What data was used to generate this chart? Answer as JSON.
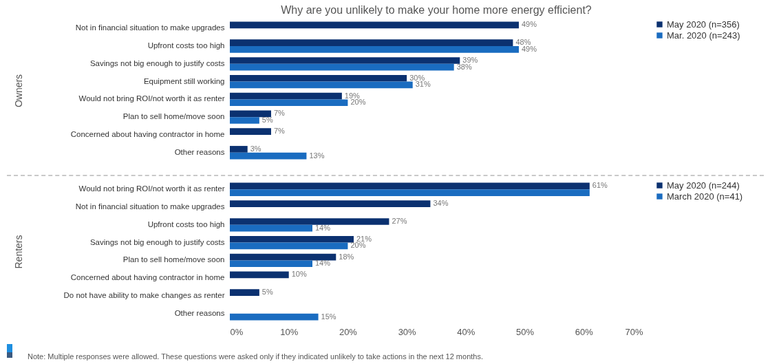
{
  "chart_data": [
    {
      "type": "bar",
      "orientation": "horizontal",
      "title": "Why are you unlikely to make your home more energy efficient?",
      "ylabel": "Owners",
      "categories": [
        "Not in financial situation to make upgrades",
        "Upfront costs too high",
        "Savings not big enough to justify costs",
        "Equipment still working",
        "Would not bring ROI/not worth it as renter",
        "Plan to sell home/move soon",
        "Concerned about having contractor in home",
        "Other reasons"
      ],
      "series": [
        {
          "name": "May 2020 (n=356)",
          "color": "#0b3170",
          "values": [
            49,
            48,
            39,
            30,
            19,
            7,
            7,
            3
          ],
          "value_labels": [
            "49%",
            "48%",
            "39%",
            "30%",
            "19%",
            "7%",
            "7%",
            "3%"
          ]
        },
        {
          "name": "Mar. 2020 (n=243)",
          "color": "#1a6cc0",
          "values": [
            null,
            49,
            38,
            31,
            20,
            5,
            null,
            13
          ],
          "value_labels": [
            null,
            "49%",
            "38%",
            "31%",
            "20%",
            "5%",
            null,
            "13%"
          ]
        }
      ],
      "xlim": [
        0,
        70
      ],
      "tick_labels": "y",
      "legend": "right",
      "grid": false
    },
    {
      "type": "bar",
      "orientation": "horizontal",
      "ylabel": "Renters",
      "categories": [
        "Would not bring ROI/not worth it as renter",
        "Not in financial situation to make upgrades",
        "Upfront costs too high",
        "Savings not big enough to justify costs",
        "Plan to sell home/move soon",
        "Concerned about having contractor in home",
        "Do not have ability to make changes as renter",
        "Other reasons"
      ],
      "series": [
        {
          "name": "May 2020 (n=244)",
          "color": "#0b3170",
          "values": [
            61,
            34,
            27,
            21,
            18,
            10,
            5,
            null
          ],
          "value_labels": [
            "61%",
            "34%",
            "27%",
            "21%",
            "18%",
            "10%",
            "5%",
            null
          ]
        },
        {
          "name": "March 2020 (n=41)",
          "color": "#1a6cc0",
          "values": [
            61,
            null,
            14,
            20,
            14,
            null,
            null,
            15
          ],
          "value_labels": [
            null,
            null,
            "14%",
            "20%",
            "14%",
            null,
            null,
            "15%"
          ]
        }
      ],
      "xlim": [
        0,
        70
      ],
      "xticks": [
        {
          "value": 0,
          "label": "0%"
        },
        {
          "value": 10,
          "label": "10%"
        },
        {
          "value": 20,
          "label": "20%"
        },
        {
          "value": 30,
          "label": "30%"
        },
        {
          "value": 40,
          "label": "40%"
        },
        {
          "value": 50,
          "label": "50%"
        },
        {
          "value": 60,
          "label": "60%"
        },
        {
          "value": 70,
          "label": "70%"
        }
      ],
      "legend": "right",
      "grid": false,
      "annotations": [
        "Note: Multiple responses were allowed. These questions were asked only if they indicated unlikely to take actions in the next 12 months."
      ]
    }
  ]
}
